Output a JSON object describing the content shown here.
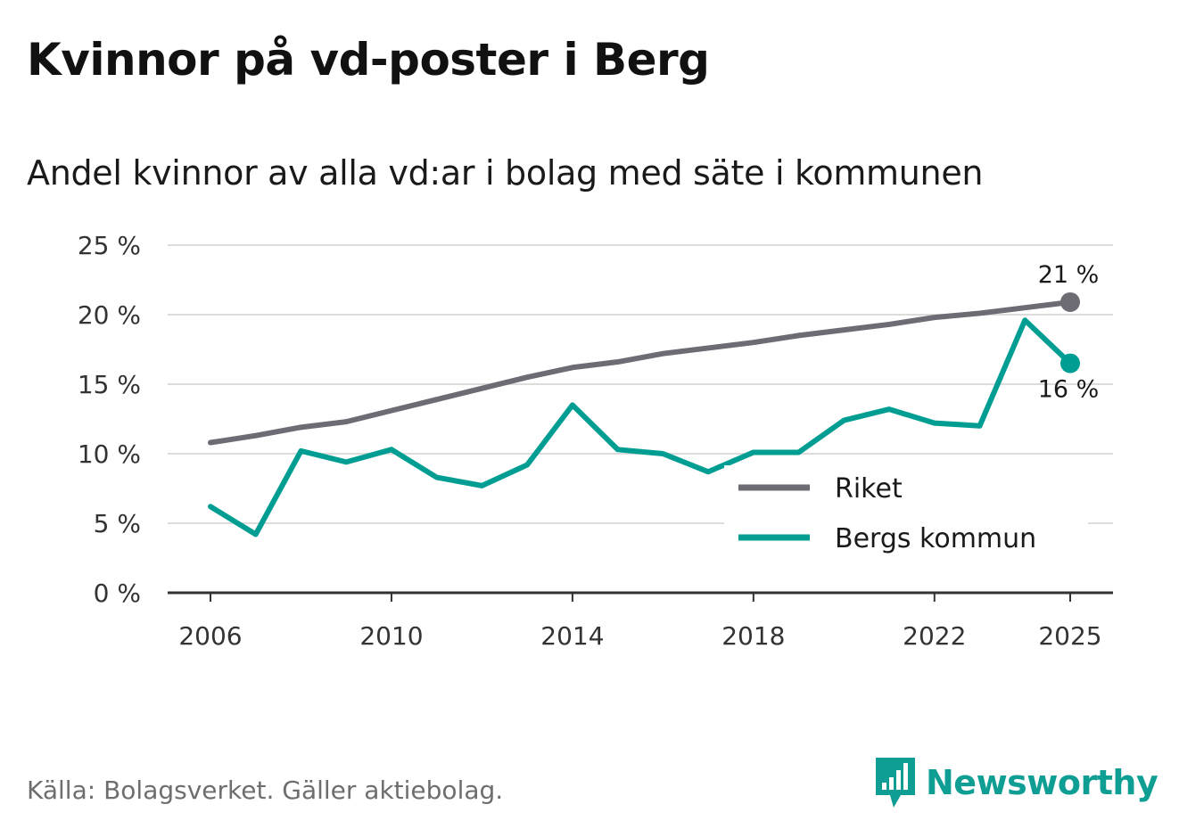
{
  "title": "Kvinnor på vd-poster i Berg",
  "subtitle": "Andel kvinnor av alla vd:ar i bolag med säte i kommunen",
  "source": "Källa: Bolagsverket. Gäller aktiebolag.",
  "brand": "Newsworthy",
  "colors": {
    "riket": "#6d6b73",
    "berg": "#009e92",
    "grid": "#dcdcdc",
    "axis": "#333333"
  },
  "chart_data": {
    "type": "line",
    "title": "Kvinnor på vd-poster i Berg",
    "xlabel": "",
    "ylabel": "",
    "x": [
      2006,
      2007,
      2008,
      2009,
      2010,
      2011,
      2012,
      2013,
      2014,
      2015,
      2016,
      2017,
      2018,
      2019,
      2020,
      2021,
      2022,
      2023,
      2024,
      2025
    ],
    "x_ticks": [
      "2006",
      "2010",
      "2014",
      "2018",
      "2022",
      "2025"
    ],
    "y_ticks": [
      "0 %",
      "5 %",
      "10 %",
      "15 %",
      "20 %",
      "25 %"
    ],
    "ylim": [
      0,
      25
    ],
    "series": [
      {
        "name": "Riket",
        "color": "#6d6b73",
        "values": [
          10.8,
          11.3,
          11.9,
          12.3,
          13.1,
          13.9,
          14.7,
          15.5,
          16.2,
          16.6,
          17.2,
          17.6,
          18.0,
          18.5,
          18.9,
          19.3,
          19.8,
          20.1,
          20.5,
          20.9
        ],
        "end_label": "21 %"
      },
      {
        "name": "Bergs kommun",
        "color": "#009e92",
        "values": [
          6.2,
          4.2,
          10.2,
          9.4,
          10.3,
          8.3,
          7.7,
          9.2,
          13.5,
          10.3,
          10.0,
          8.7,
          10.1,
          10.1,
          12.4,
          13.2,
          12.2,
          12.0,
          19.6,
          16.5
        ],
        "end_label": "16 %"
      }
    ],
    "legend": [
      {
        "label": "Riket"
      },
      {
        "label": "Bergs kommun"
      }
    ],
    "legend_position": "bottom-right",
    "grid": true
  }
}
